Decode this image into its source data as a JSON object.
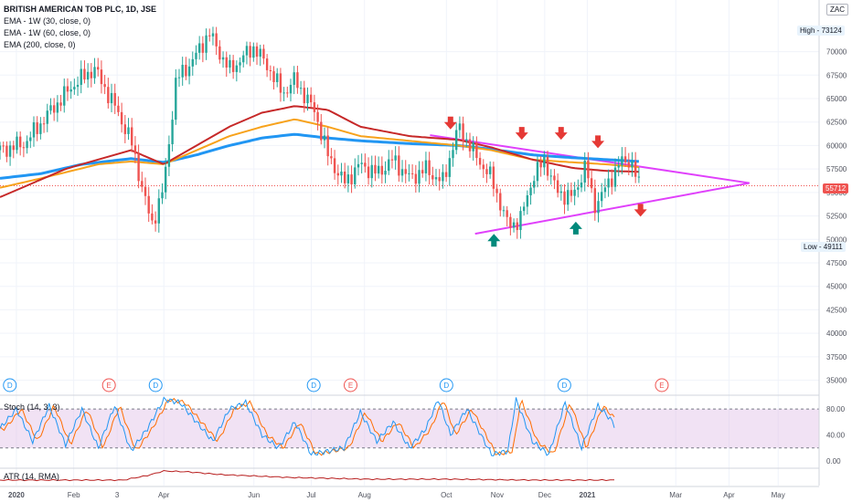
{
  "header": {
    "symbol": "BRITISH AMERICAN TOB PLC, 1D, JSE",
    "indicators": [
      "EMA - 1W (30, close, 0)",
      "EMA - 1W (60, close, 0)",
      "EMA (200, close, 0)"
    ],
    "currency": "ZAC"
  },
  "tags": {
    "high_label": "High",
    "high_value": "73124",
    "low_label": "Low",
    "low_value": "49111",
    "last_value": "55712"
  },
  "stoch": {
    "label": "Stoch (14, 3, 3)",
    "ticks": [
      "80.00",
      "40.00",
      "0.00"
    ]
  },
  "atr": {
    "label": "ATR (14, RMA)"
  },
  "events": {
    "D": "D",
    "E": "E"
  },
  "colors": {
    "up": "#26a69a",
    "down": "#ef5350",
    "ema30": "#f7a21b",
    "ema60": "#2196f3",
    "ema200": "#c62828",
    "trend": "#e040fb",
    "arrow_red": "#e53935",
    "arrow_green": "#00897b",
    "stoch_k": "#2196f3",
    "stoch_d": "#ff6d00",
    "atr": "#b71c1c"
  },
  "chart_data": {
    "type": "candlestick",
    "x_ticks": [
      "2020",
      "Feb",
      "3",
      "Apr",
      "Jun",
      "Jul",
      "Aug",
      "Oct",
      "Nov",
      "Dec",
      "2021",
      "Mar",
      "Apr",
      "May"
    ],
    "y_ticks": [
      35000,
      37500,
      40000,
      42500,
      45000,
      47500,
      50000,
      52500,
      55000,
      57500,
      60000,
      62500,
      65000,
      67500,
      70000
    ],
    "ylim": [
      33500,
      75500
    ],
    "series_anchors": {
      "close": [
        [
          0,
          59500
        ],
        [
          0.03,
          60200
        ],
        [
          0.06,
          63500
        ],
        [
          0.09,
          66500
        ],
        [
          0.115,
          68200
        ],
        [
          0.14,
          64200
        ],
        [
          0.16,
          60500
        ],
        [
          0.175,
          55000
        ],
        [
          0.185,
          51500
        ],
        [
          0.2,
          55500
        ],
        [
          0.215,
          67000
        ],
        [
          0.235,
          69000
        ],
        [
          0.255,
          72000
        ],
        [
          0.28,
          68000
        ],
        [
          0.31,
          70500
        ],
        [
          0.33,
          68000
        ],
        [
          0.345,
          65500
        ],
        [
          0.36,
          67000
        ],
        [
          0.385,
          63500
        ],
        [
          0.4,
          59000
        ],
        [
          0.42,
          56000
        ],
        [
          0.44,
          58000
        ],
        [
          0.46,
          57000
        ],
        [
          0.48,
          58500
        ],
        [
          0.5,
          56500
        ],
        [
          0.52,
          57500
        ],
        [
          0.54,
          56000
        ],
        [
          0.56,
          62000
        ],
        [
          0.58,
          59000
        ],
        [
          0.6,
          56500
        ],
        [
          0.62,
          51500
        ],
        [
          0.635,
          52000
        ],
        [
          0.65,
          56500
        ],
        [
          0.665,
          58500
        ],
        [
          0.68,
          55000
        ],
        [
          0.7,
          54500
        ],
        [
          0.715,
          58000
        ],
        [
          0.725,
          53500
        ],
        [
          0.74,
          55500
        ],
        [
          0.755,
          58000
        ],
        [
          0.77,
          58500
        ],
        [
          0.78,
          55700
        ]
      ],
      "ema30": [
        [
          0,
          55500
        ],
        [
          0.05,
          56500
        ],
        [
          0.12,
          58000
        ],
        [
          0.16,
          58300
        ],
        [
          0.2,
          58000
        ],
        [
          0.24,
          59500
        ],
        [
          0.28,
          61000
        ],
        [
          0.32,
          62000
        ],
        [
          0.36,
          62800
        ],
        [
          0.4,
          62000
        ],
        [
          0.44,
          61000
        ],
        [
          0.5,
          60500
        ],
        [
          0.56,
          60000
        ],
        [
          0.6,
          59500
        ],
        [
          0.65,
          58500
        ],
        [
          0.7,
          58200
        ],
        [
          0.74,
          58000
        ],
        [
          0.78,
          57700
        ]
      ],
      "ema60": [
        [
          0,
          56500
        ],
        [
          0.05,
          57000
        ],
        [
          0.1,
          58000
        ],
        [
          0.16,
          58600
        ],
        [
          0.2,
          58200
        ],
        [
          0.24,
          59000
        ],
        [
          0.28,
          60000
        ],
        [
          0.32,
          60800
        ],
        [
          0.36,
          61200
        ],
        [
          0.4,
          60800
        ],
        [
          0.44,
          60500
        ],
        [
          0.5,
          60200
        ],
        [
          0.56,
          60000
        ],
        [
          0.6,
          59600
        ],
        [
          0.65,
          59000
        ],
        [
          0.7,
          58700
        ],
        [
          0.74,
          58500
        ],
        [
          0.78,
          58300
        ]
      ],
      "ema200": [
        [
          0,
          54500
        ],
        [
          0.04,
          56000
        ],
        [
          0.08,
          57500
        ],
        [
          0.12,
          58500
        ],
        [
          0.16,
          59500
        ],
        [
          0.2,
          58000
        ],
        [
          0.24,
          60000
        ],
        [
          0.28,
          62000
        ],
        [
          0.32,
          63500
        ],
        [
          0.36,
          64200
        ],
        [
          0.4,
          63800
        ],
        [
          0.44,
          62000
        ],
        [
          0.5,
          61000
        ],
        [
          0.56,
          60600
        ],
        [
          0.6,
          59800
        ],
        [
          0.65,
          58500
        ],
        [
          0.7,
          57600
        ],
        [
          0.74,
          57300
        ],
        [
          0.78,
          57200
        ]
      ]
    },
    "trendlines": {
      "upper": [
        [
          0.525,
          61100
        ],
        [
          0.915,
          56000
        ]
      ],
      "lower": [
        [
          0.58,
          50600
        ],
        [
          0.915,
          56000
        ]
      ]
    },
    "arrows": [
      {
        "x": 0.55,
        "y": 62300,
        "dir": "down"
      },
      {
        "x": 0.637,
        "y": 61200,
        "dir": "down"
      },
      {
        "x": 0.685,
        "y": 61200,
        "dir": "down"
      },
      {
        "x": 0.73,
        "y": 60300,
        "dir": "down"
      },
      {
        "x": 0.782,
        "y": 53000,
        "dir": "down"
      },
      {
        "x": 0.603,
        "y": 50000,
        "dir": "up"
      },
      {
        "x": 0.703,
        "y": 51300,
        "dir": "up"
      }
    ],
    "events": [
      {
        "x": 0.012,
        "t": "D"
      },
      {
        "x": 0.133,
        "t": "E"
      },
      {
        "x": 0.19,
        "t": "D"
      },
      {
        "x": 0.383,
        "t": "D"
      },
      {
        "x": 0.428,
        "t": "E"
      },
      {
        "x": 0.545,
        "t": "D"
      },
      {
        "x": 0.689,
        "t": "D"
      },
      {
        "x": 0.808,
        "t": "E"
      }
    ],
    "stochastic": {
      "type": "line",
      "ylim": [
        -10,
        100
      ],
      "anchors_k": [
        [
          0,
          50
        ],
        [
          0.02,
          80
        ],
        [
          0.04,
          30
        ],
        [
          0.06,
          85
        ],
        [
          0.08,
          25
        ],
        [
          0.1,
          80
        ],
        [
          0.12,
          20
        ],
        [
          0.14,
          85
        ],
        [
          0.16,
          15
        ],
        [
          0.18,
          50
        ],
        [
          0.2,
          95
        ],
        [
          0.22,
          90
        ],
        [
          0.24,
          60
        ],
        [
          0.26,
          30
        ],
        [
          0.28,
          80
        ],
        [
          0.3,
          90
        ],
        [
          0.32,
          40
        ],
        [
          0.34,
          20
        ],
        [
          0.36,
          60
        ],
        [
          0.38,
          10
        ],
        [
          0.4,
          15
        ],
        [
          0.42,
          20
        ],
        [
          0.44,
          75
        ],
        [
          0.46,
          30
        ],
        [
          0.48,
          60
        ],
        [
          0.5,
          20
        ],
        [
          0.52,
          50
        ],
        [
          0.535,
          95
        ],
        [
          0.55,
          40
        ],
        [
          0.57,
          80
        ],
        [
          0.6,
          10
        ],
        [
          0.62,
          15
        ],
        [
          0.63,
          95
        ],
        [
          0.65,
          30
        ],
        [
          0.67,
          10
        ],
        [
          0.69,
          90
        ],
        [
          0.71,
          20
        ],
        [
          0.73,
          85
        ],
        [
          0.745,
          65
        ],
        [
          0.75,
          55
        ]
      ]
    }
  }
}
